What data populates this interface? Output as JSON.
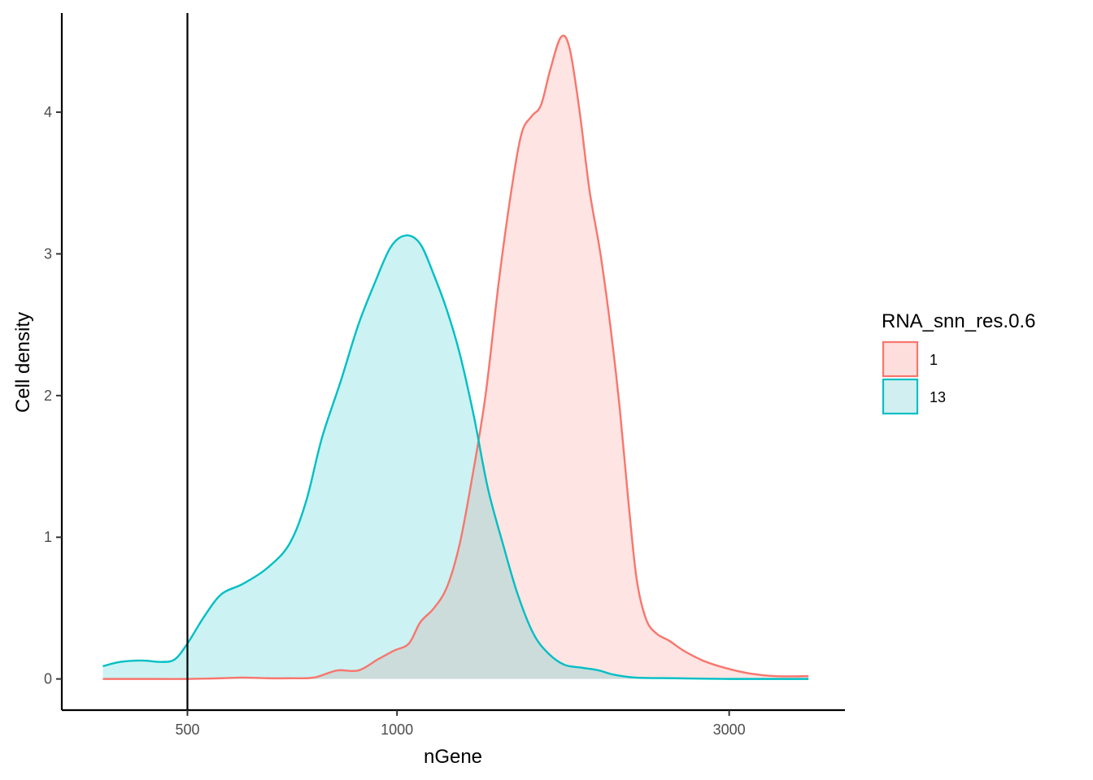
{
  "chart_data": {
    "type": "area",
    "xlabel": "nGene",
    "ylabel": "Cell density",
    "x_scale": "log10",
    "xlim": [
      330,
      4400
    ],
    "ylim": [
      -0.22,
      4.7
    ],
    "x_ticks": [
      500,
      1000,
      3000
    ],
    "x_tick_labels": [
      "500",
      "1000",
      "3000"
    ],
    "y_ticks": [
      0,
      1,
      2,
      3,
      4
    ],
    "y_tick_labels": [
      "0",
      "1",
      "2",
      "3",
      "4"
    ],
    "vline_x": 500,
    "grid": false,
    "legend": {
      "title": "RNA_snn_res.0.6",
      "placement": "right"
    },
    "series": [
      {
        "name": "1",
        "color": "#F8766D",
        "fill": "#FDDEDD",
        "points": [
          [
            378,
            0.0
          ],
          [
            450,
            0.0
          ],
          [
            500,
            0.0
          ],
          [
            560,
            0.005
          ],
          [
            600,
            0.01
          ],
          [
            650,
            0.005
          ],
          [
            700,
            0.005
          ],
          [
            760,
            0.01
          ],
          [
            820,
            0.06
          ],
          [
            880,
            0.06
          ],
          [
            940,
            0.14
          ],
          [
            990,
            0.2
          ],
          [
            1040,
            0.25
          ],
          [
            1080,
            0.4
          ],
          [
            1130,
            0.5
          ],
          [
            1180,
            0.65
          ],
          [
            1230,
            0.95
          ],
          [
            1280,
            1.4
          ],
          [
            1340,
            2.0
          ],
          [
            1400,
            2.8
          ],
          [
            1460,
            3.45
          ],
          [
            1510,
            3.85
          ],
          [
            1560,
            3.97
          ],
          [
            1610,
            4.05
          ],
          [
            1660,
            4.3
          ],
          [
            1720,
            4.53
          ],
          [
            1770,
            4.45
          ],
          [
            1830,
            4.0
          ],
          [
            1890,
            3.45
          ],
          [
            1960,
            3.0
          ],
          [
            2030,
            2.45
          ],
          [
            2090,
            1.9
          ],
          [
            2150,
            1.25
          ],
          [
            2210,
            0.7
          ],
          [
            2280,
            0.42
          ],
          [
            2360,
            0.32
          ],
          [
            2460,
            0.27
          ],
          [
            2580,
            0.2
          ],
          [
            2750,
            0.13
          ],
          [
            2950,
            0.08
          ],
          [
            3200,
            0.04
          ],
          [
            3500,
            0.02
          ],
          [
            3900,
            0.02
          ]
        ]
      },
      {
        "name": "13",
        "color": "#00BFC4",
        "fill": "#D1EFF0",
        "points": [
          [
            378,
            0.09
          ],
          [
            400,
            0.12
          ],
          [
            430,
            0.13
          ],
          [
            460,
            0.12
          ],
          [
            480,
            0.14
          ],
          [
            500,
            0.25
          ],
          [
            530,
            0.45
          ],
          [
            560,
            0.6
          ],
          [
            600,
            0.67
          ],
          [
            650,
            0.78
          ],
          [
            700,
            0.95
          ],
          [
            740,
            1.25
          ],
          [
            780,
            1.7
          ],
          [
            830,
            2.1
          ],
          [
            880,
            2.5
          ],
          [
            930,
            2.8
          ],
          [
            980,
            3.05
          ],
          [
            1030,
            3.13
          ],
          [
            1080,
            3.07
          ],
          [
            1130,
            2.85
          ],
          [
            1180,
            2.6
          ],
          [
            1230,
            2.3
          ],
          [
            1290,
            1.85
          ],
          [
            1350,
            1.35
          ],
          [
            1420,
            0.95
          ],
          [
            1490,
            0.6
          ],
          [
            1570,
            0.32
          ],
          [
            1650,
            0.18
          ],
          [
            1740,
            0.1
          ],
          [
            1840,
            0.08
          ],
          [
            1950,
            0.06
          ],
          [
            2050,
            0.03
          ],
          [
            2200,
            0.01
          ],
          [
            2500,
            0.005
          ],
          [
            3000,
            0.0
          ],
          [
            3500,
            0.0
          ],
          [
            3900,
            0.0
          ]
        ]
      }
    ]
  }
}
